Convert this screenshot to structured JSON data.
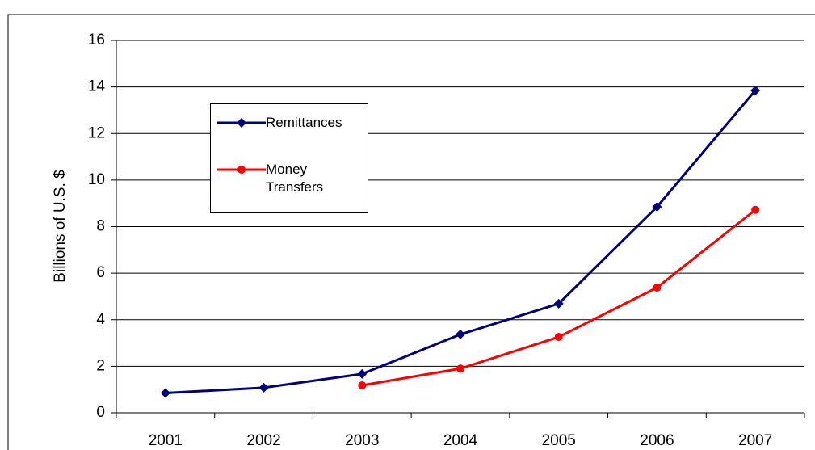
{
  "chart_data": {
    "type": "line",
    "y_label": "Billions of U.S. $",
    "categories": [
      "2001",
      "2002",
      "2003",
      "2004",
      "2005",
      "2006",
      "2007"
    ],
    "series": [
      {
        "name": "Remittances",
        "color": "#000080",
        "marker": "diamond",
        "values": [
          0.85,
          1.08,
          1.67,
          3.37,
          4.69,
          8.85,
          13.85
        ]
      },
      {
        "name": "Money Transfers",
        "color": "#ff0000",
        "marker": "circle",
        "values": [
          null,
          null,
          1.18,
          1.9,
          3.26,
          5.38,
          8.72
        ]
      }
    ],
    "ylim": [
      0,
      16
    ],
    "yticks": [
      0,
      2,
      4,
      6,
      8,
      10,
      12,
      14,
      16
    ],
    "grid": true
  }
}
